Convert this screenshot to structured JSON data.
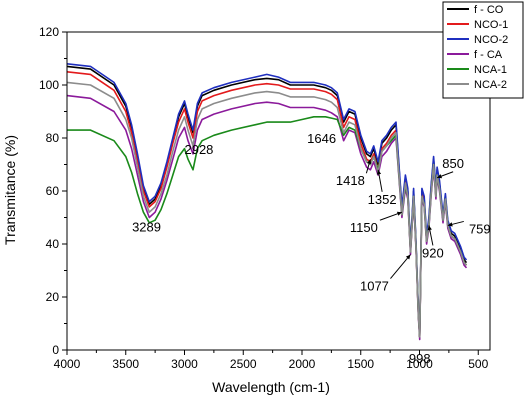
{
  "chart_data": {
    "type": "line",
    "title": "",
    "xlabel": "Wavelength (cm-1)",
    "ylabel": "Transmitance (%)",
    "xlim": [
      4000,
      400
    ],
    "ylim": [
      0,
      120
    ],
    "x_ticks": [
      "4000",
      "3500",
      "3000",
      "2500",
      "2000",
      "1500",
      "1000",
      "500"
    ],
    "y_ticks": [
      "0",
      "20",
      "40",
      "60",
      "80",
      "100",
      "120"
    ],
    "legend_position": "top-right",
    "series": [
      {
        "name": "f - CO",
        "color": "#000000",
        "x": [
          4000,
          3800,
          3600,
          3500,
          3450,
          3400,
          3350,
          3300,
          3250,
          3200,
          3150,
          3100,
          3050,
          3000,
          2970,
          2928,
          2890,
          2850,
          2750,
          2600,
          2400,
          2300,
          2200,
          2100,
          2000,
          1900,
          1800,
          1750,
          1700,
          1646,
          1600,
          1550,
          1500,
          1450,
          1418,
          1390,
          1352,
          1320,
          1280,
          1240,
          1200,
          1150,
          1120,
          1100,
          1077,
          1050,
          1030,
          1010,
          998,
          980,
          960,
          940,
          920,
          900,
          880,
          860,
          850,
          830,
          800,
          780,
          759,
          730,
          700,
          650,
          620,
          600
        ],
        "y": [
          107,
          106,
          100,
          92,
          84,
          73,
          61,
          55,
          57,
          62,
          70,
          79,
          88,
          93,
          88,
          82,
          92,
          96,
          98,
          100,
          102,
          102.5,
          102,
          100,
          100,
          100,
          99,
          98,
          96,
          86,
          90,
          89,
          80,
          74,
          73,
          76,
          70,
          78,
          80,
          83,
          85,
          53,
          65,
          60,
          38,
          60,
          40,
          15,
          5,
          60,
          57,
          42,
          49,
          62,
          72,
          60,
          68,
          63,
          50,
          58,
          48,
          44,
          43,
          38,
          34,
          33
        ]
      },
      {
        "name": "NCO-1",
        "color": "#e31a1c",
        "x": [
          4000,
          3800,
          3600,
          3500,
          3450,
          3400,
          3350,
          3300,
          3250,
          3200,
          3150,
          3100,
          3050,
          3000,
          2970,
          2928,
          2890,
          2850,
          2750,
          2600,
          2400,
          2300,
          2200,
          2100,
          2000,
          1900,
          1800,
          1750,
          1700,
          1646,
          1600,
          1550,
          1500,
          1450,
          1418,
          1390,
          1352,
          1320,
          1280,
          1240,
          1200,
          1150,
          1120,
          1100,
          1077,
          1050,
          1030,
          1010,
          998,
          980,
          960,
          940,
          920,
          900,
          880,
          860,
          850,
          830,
          800,
          780,
          759,
          730,
          700,
          650,
          620,
          600
        ],
        "y": [
          105,
          104,
          98,
          90,
          82,
          71,
          60,
          54,
          56,
          61,
          69,
          78,
          86,
          91,
          86,
          80,
          90,
          94,
          96,
          98,
          100,
          100.5,
          100,
          98.5,
          98.5,
          98.5,
          97.5,
          96.5,
          94.5,
          84,
          88,
          87,
          78,
          72,
          71,
          74,
          68,
          76,
          78,
          81,
          83,
          52,
          64,
          59,
          37,
          59,
          39,
          14,
          5,
          59,
          56,
          41,
          48,
          61,
          71,
          59,
          67,
          62,
          49,
          57,
          47,
          43,
          42,
          37,
          33,
          32
        ]
      },
      {
        "name": "NCO-2",
        "color": "#1f2fbf",
        "x": [
          4000,
          3800,
          3600,
          3500,
          3450,
          3400,
          3350,
          3300,
          3250,
          3200,
          3150,
          3100,
          3050,
          3000,
          2970,
          2928,
          2890,
          2850,
          2750,
          2600,
          2400,
          2300,
          2200,
          2100,
          2000,
          1900,
          1800,
          1750,
          1700,
          1646,
          1600,
          1550,
          1500,
          1450,
          1418,
          1390,
          1352,
          1320,
          1280,
          1240,
          1200,
          1150,
          1120,
          1100,
          1077,
          1050,
          1030,
          1010,
          998,
          980,
          960,
          940,
          920,
          900,
          880,
          860,
          850,
          830,
          800,
          780,
          759,
          730,
          700,
          650,
          620,
          600
        ],
        "y": [
          108,
          107,
          101,
          93,
          85,
          74,
          62,
          56,
          58,
          63,
          71,
          80,
          89,
          94,
          89,
          83,
          93,
          97,
          99,
          101,
          103,
          104,
          103,
          101,
          101,
          101,
          100,
          99,
          97,
          87,
          91,
          90,
          81,
          75,
          74,
          77,
          71,
          79,
          81,
          84,
          86,
          54,
          66,
          61,
          39,
          61,
          41,
          16,
          6,
          61,
          58,
          43,
          50,
          63,
          73,
          61,
          69,
          64,
          51,
          59,
          49,
          45,
          44,
          39,
          35,
          34
        ]
      },
      {
        "name": "f - CA",
        "color": "#8b1a9b",
        "x": [
          4000,
          3800,
          3600,
          3500,
          3450,
          3400,
          3350,
          3300,
          3250,
          3200,
          3150,
          3100,
          3050,
          3000,
          2970,
          2928,
          2890,
          2850,
          2750,
          2600,
          2400,
          2300,
          2200,
          2100,
          2000,
          1900,
          1800,
          1750,
          1700,
          1646,
          1600,
          1550,
          1500,
          1450,
          1418,
          1390,
          1352,
          1320,
          1280,
          1240,
          1200,
          1150,
          1120,
          1100,
          1077,
          1050,
          1030,
          1010,
          998,
          980,
          960,
          940,
          920,
          900,
          880,
          860,
          850,
          830,
          800,
          780,
          759,
          730,
          700,
          650,
          620,
          600
        ],
        "y": [
          96,
          95,
          90,
          83,
          76,
          66,
          56,
          50,
          52,
          57,
          64,
          72,
          80,
          84,
          79,
          74,
          83,
          87,
          89,
          91,
          93,
          93.5,
          93,
          91.5,
          91.5,
          91.5,
          90.5,
          89.5,
          88,
          79,
          83,
          82,
          74,
          69,
          68,
          71,
          66,
          73,
          75,
          78,
          80,
          50,
          61,
          57,
          36,
          57,
          38,
          13,
          4,
          57,
          54,
          40,
          46,
          59,
          69,
          57,
          65,
          60,
          48,
          56,
          46,
          42,
          41,
          36,
          32,
          31
        ]
      },
      {
        "name": "NCA-1",
        "color": "#1a8a1a",
        "x": [
          4000,
          3800,
          3600,
          3500,
          3450,
          3400,
          3350,
          3300,
          3250,
          3200,
          3150,
          3100,
          3050,
          3000,
          2970,
          2928,
          2890,
          2850,
          2750,
          2600,
          2400,
          2300,
          2200,
          2100,
          2000,
          1900,
          1800,
          1750,
          1700,
          1646,
          1600,
          1550,
          1500,
          1450,
          1418,
          1390,
          1352,
          1320,
          1280,
          1240,
          1200,
          1150,
          1120,
          1100,
          1077,
          1050,
          1030,
          1010,
          998,
          980,
          960,
          940,
          920,
          900,
          880,
          860,
          850,
          830,
          800,
          780,
          759,
          730,
          700,
          650,
          620,
          600
        ],
        "y": [
          83,
          83,
          79,
          73,
          67,
          59,
          52,
          48,
          49,
          53,
          59,
          66,
          73,
          76,
          72,
          68,
          76,
          79,
          81,
          83,
          85,
          86,
          86,
          86,
          87,
          88,
          88,
          87.5,
          87,
          81,
          84,
          83,
          76,
          71,
          70,
          73,
          68,
          75,
          77,
          79,
          81,
          51,
          62,
          58,
          37,
          58,
          39,
          14,
          5,
          58,
          55,
          41,
          47,
          60,
          70,
          58,
          66,
          61,
          49,
          57,
          47,
          43,
          42,
          37,
          33,
          32
        ]
      },
      {
        "name": "NCA-2",
        "color": "#8c8c8c",
        "x": [
          4000,
          3800,
          3600,
          3500,
          3450,
          3400,
          3350,
          3300,
          3250,
          3200,
          3150,
          3100,
          3050,
          3000,
          2970,
          2928,
          2890,
          2850,
          2750,
          2600,
          2400,
          2300,
          2200,
          2100,
          2000,
          1900,
          1800,
          1750,
          1700,
          1646,
          1600,
          1550,
          1500,
          1450,
          1418,
          1390,
          1352,
          1320,
          1280,
          1240,
          1200,
          1150,
          1120,
          1100,
          1077,
          1050,
          1030,
          1010,
          998,
          980,
          960,
          940,
          920,
          900,
          880,
          860,
          850,
          830,
          800,
          780,
          759,
          730,
          700,
          650,
          620,
          600
        ],
        "y": [
          101,
          100,
          95,
          87,
          80,
          69,
          58,
          52,
          54,
          59,
          66,
          75,
          83,
          88,
          83,
          77,
          87,
          91,
          93,
          95,
          97,
          97.5,
          97,
          95.5,
          95.5,
          95.5,
          94.5,
          93.5,
          91.5,
          82,
          86,
          85,
          76,
          71,
          70,
          73,
          67,
          75,
          77,
          80,
          82,
          51,
          63,
          58,
          37,
          58,
          39,
          14,
          5,
          58,
          55,
          41,
          47,
          60,
          70,
          58,
          66,
          61,
          49,
          57,
          47,
          43,
          42,
          37,
          33,
          32
        ]
      }
    ],
    "annotations": [
      {
        "text": "3289",
        "x": 3289,
        "y": 53
      },
      {
        "text": "2928",
        "x": 2928,
        "y": 80
      },
      {
        "text": "1646",
        "x": 1646,
        "y": 85
      },
      {
        "text": "1418",
        "x": 1418,
        "y": 72
      },
      {
        "text": "1352",
        "x": 1352,
        "y": 68
      },
      {
        "text": "1150",
        "x": 1150,
        "y": 52
      },
      {
        "text": "1077",
        "x": 1077,
        "y": 36
      },
      {
        "text": "998",
        "x": 998,
        "y": 5
      },
      {
        "text": "920",
        "x": 920,
        "y": 47
      },
      {
        "text": "850",
        "x": 850,
        "y": 65
      },
      {
        "text": "759",
        "x": 759,
        "y": 47
      }
    ]
  }
}
